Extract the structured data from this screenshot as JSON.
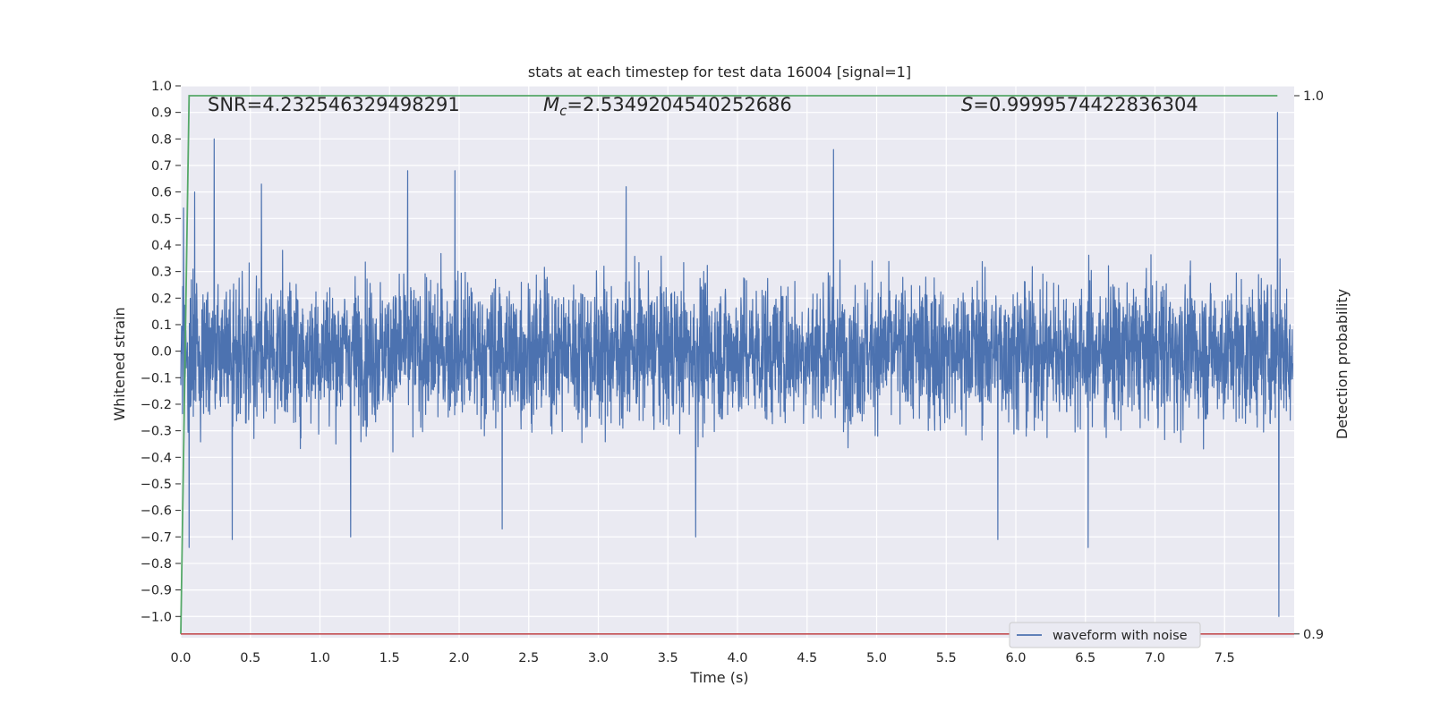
{
  "chart_data": {
    "type": "line",
    "title": "stats at each timestep for test data 16004 [signal=1]",
    "xlabel": "Time (s)",
    "ylabel": "Whitened strain",
    "y2label": "Detection probability",
    "xlim": [
      0.0,
      8.0
    ],
    "ylim": [
      -1.08,
      1.0
    ],
    "y2lim": [
      0.8993,
      1.00183
    ],
    "x_ticks": [
      "0.0",
      "0.5",
      "1.0",
      "1.5",
      "2.0",
      "2.5",
      "3.0",
      "3.5",
      "4.0",
      "4.5",
      "5.0",
      "5.5",
      "6.0",
      "6.5",
      "7.0",
      "7.5"
    ],
    "y_ticks": [
      "1.0",
      "0.9",
      "0.8",
      "0.7",
      "0.6",
      "0.5",
      "0.4",
      "0.3",
      "0.2",
      "0.1",
      "0.0",
      "−0.1",
      "−0.2",
      "−0.3",
      "−0.4",
      "−0.5",
      "−0.6",
      "−0.7",
      "−0.8",
      "−0.9",
      "−1.0"
    ],
    "y2_ticks": [
      "1.0",
      "0.9"
    ],
    "grid": true,
    "legend_position": "lower-right",
    "annotations": {
      "snr": "SNR=4.232546329498291",
      "mc_symbol": "M",
      "mc_subscript": "c",
      "mc_value": "=2.5349204540252686",
      "s_symbol": "S",
      "s_value": "=0.9999574422836304"
    },
    "series": [
      {
        "name": "waveform with noise",
        "axis": "left",
        "color": "#4c72b0",
        "description_envelope": {
          "typical_amplitude": 0.45,
          "max": 0.9,
          "min": -1.0
        },
        "peaks": [
          {
            "x": 0.02,
            "y": 0.54
          },
          {
            "x": 0.06,
            "y": -0.74
          },
          {
            "x": 0.1,
            "y": 0.6
          },
          {
            "x": 0.24,
            "y": 0.8
          },
          {
            "x": 0.37,
            "y": -0.71
          },
          {
            "x": 0.58,
            "y": 0.63
          },
          {
            "x": 1.22,
            "y": -0.7
          },
          {
            "x": 1.63,
            "y": 0.68
          },
          {
            "x": 1.97,
            "y": 0.68
          },
          {
            "x": 2.31,
            "y": -0.67
          },
          {
            "x": 3.2,
            "y": 0.62
          },
          {
            "x": 3.7,
            "y": -0.7
          },
          {
            "x": 4.69,
            "y": 0.76
          },
          {
            "x": 5.87,
            "y": -0.71
          },
          {
            "x": 6.52,
            "y": -0.74
          },
          {
            "x": 7.88,
            "y": 0.9
          },
          {
            "x": 7.89,
            "y": -1.0
          }
        ]
      },
      {
        "name": "detection probability",
        "axis": "right",
        "color": "#55a868",
        "x": [
          0.0,
          0.06,
          7.88
        ],
        "y": [
          0.9,
          1.0,
          1.0
        ]
      }
    ],
    "hlines": [
      {
        "axis": "right",
        "y": 0.9,
        "color": "#c44e52"
      }
    ]
  }
}
